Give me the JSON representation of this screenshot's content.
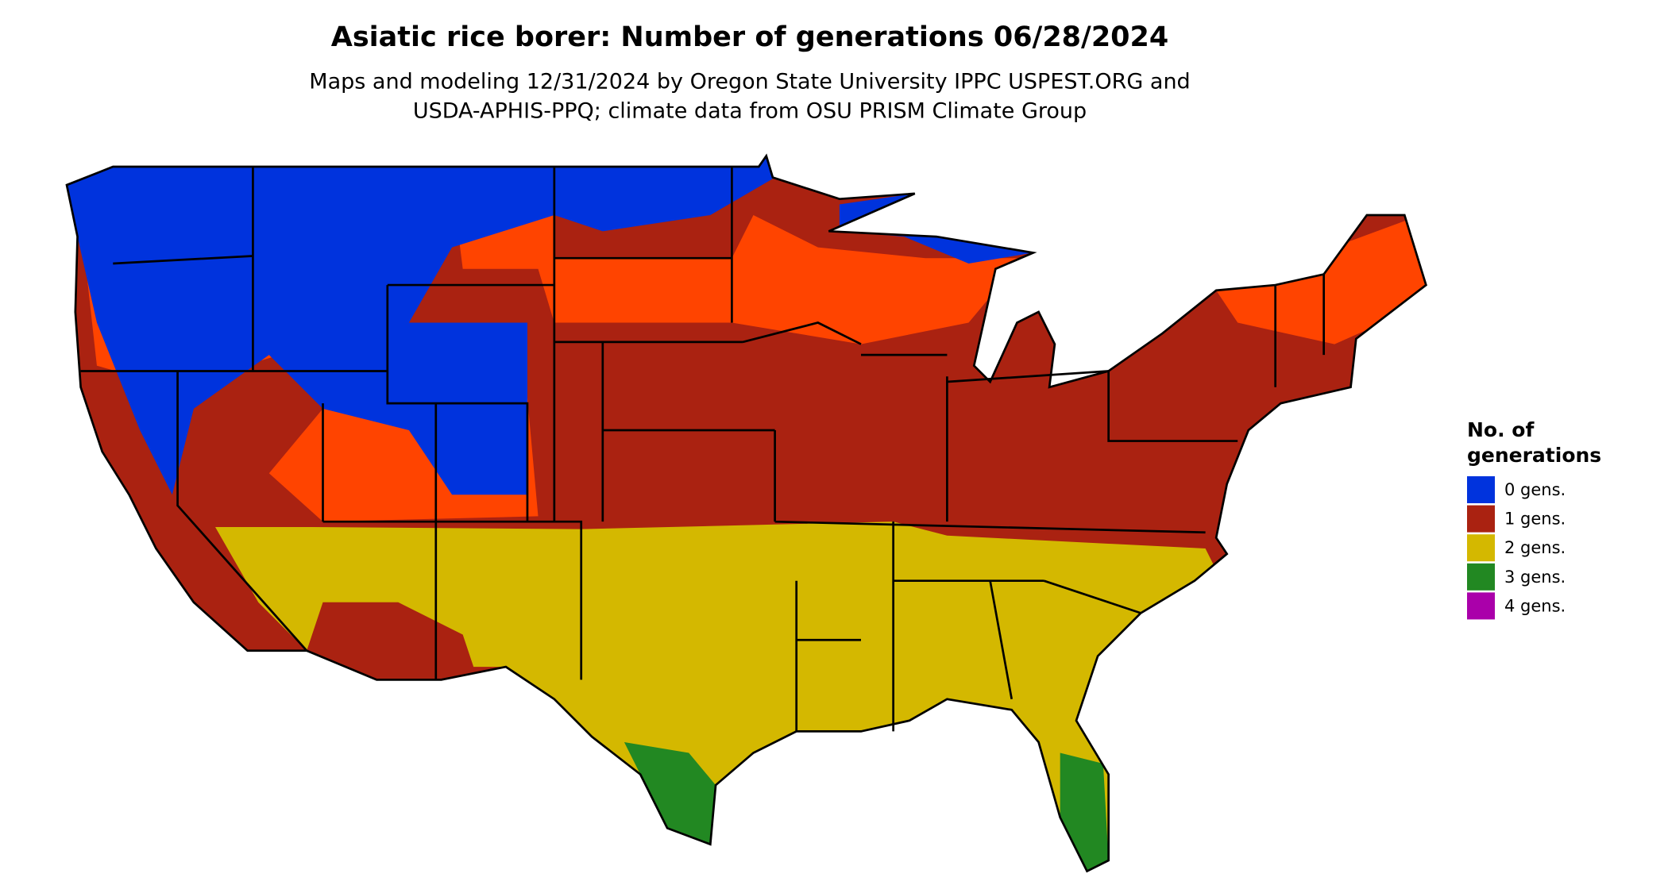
{
  "title": "Asiatic rice borer: Number of generations 06/28/2024",
  "subtitle": [
    "Maps and modeling 12/31/2024 by Oregon State University IPPC USPEST.ORG and",
    "USDA-APHIS-PPQ; climate data from OSU PRISM Climate Group"
  ],
  "legend": {
    "title": [
      "No. of",
      "generations"
    ],
    "items": [
      {
        "label": "0 gens.",
        "color": "#0033dd"
      },
      {
        "label": "1 gens.",
        "color": "#aa2211"
      },
      {
        "label": "2 gens.",
        "color": "#d4b800"
      },
      {
        "label": "3 gens.",
        "color": "#228822"
      },
      {
        "label": "4 gens.",
        "color": "#aa00aa"
      }
    ]
  }
}
